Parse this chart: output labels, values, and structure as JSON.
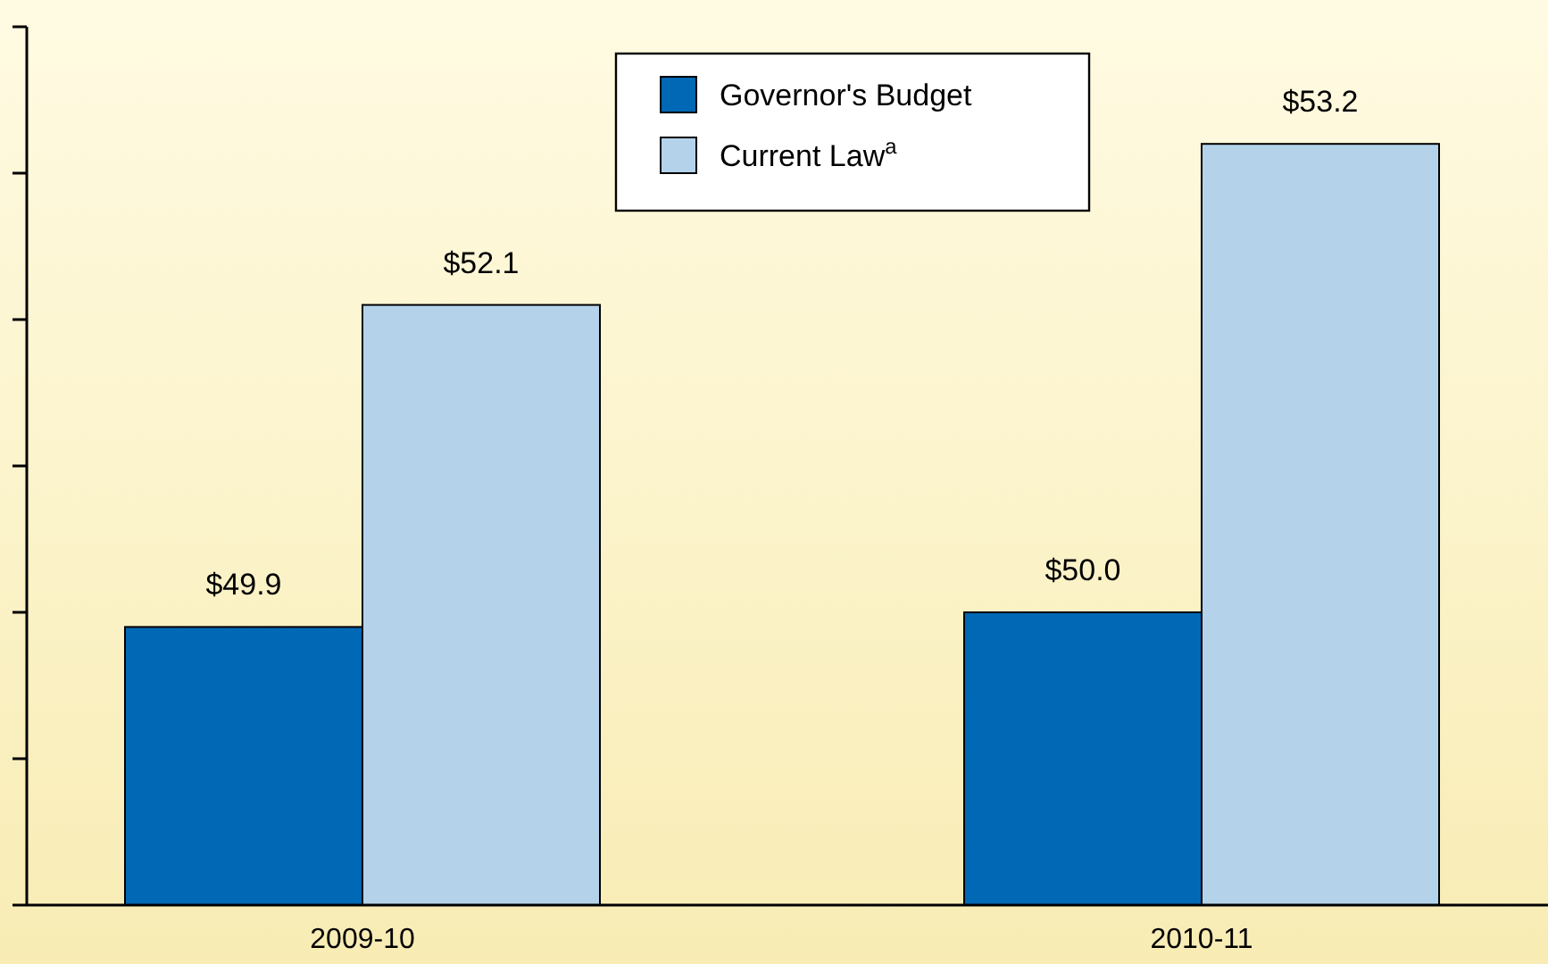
{
  "chart_data": {
    "type": "bar",
    "categories": [
      "2009-10",
      "2010-11"
    ],
    "series": [
      {
        "name": "Governor's Budget",
        "color": "#0068b4",
        "values": [
          49.9,
          50.0
        ],
        "value_labels": [
          "$49.9",
          "$50.0"
        ]
      },
      {
        "name": "Current Law$^{a}$",
        "color": "#b4d3eb",
        "values": [
          52.1,
          53.2
        ],
        "value_labels": [
          "$52.1",
          "$53.2"
        ]
      }
    ],
    "ylim": [
      48,
      54
    ],
    "yticks": [
      {
        "value": 48,
        "label": null
      },
      {
        "value": 49,
        "label": null
      },
      {
        "value": 50,
        "label": null
      },
      {
        "value": 51,
        "label": null
      },
      {
        "value": 52,
        "label": null
      },
      {
        "value": 53,
        "label": null
      },
      {
        "value": 54,
        "label": null
      }
    ],
    "tick_labels": "x",
    "legend": "top right",
    "grid": false
  }
}
